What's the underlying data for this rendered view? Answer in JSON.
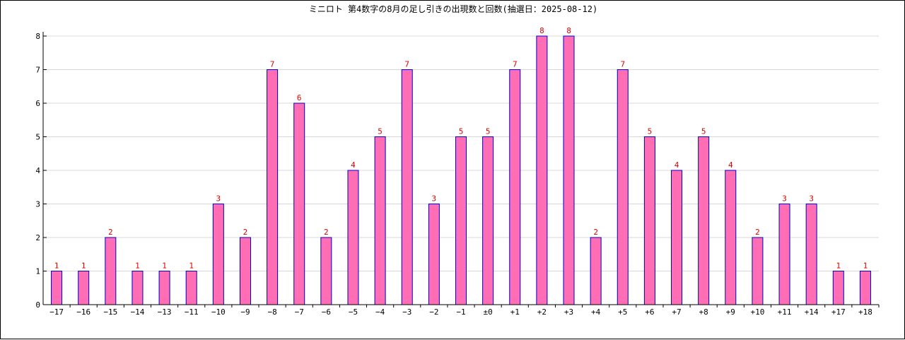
{
  "chart_data": {
    "type": "bar",
    "title": "ミニロト 第4数字の8月の足し引きの出現数と回数(抽選日：2025-08-12)",
    "xlabel": "",
    "ylabel": "",
    "categories": [
      "−17",
      "−16",
      "−15",
      "−14",
      "−13",
      "−11",
      "−10",
      "−9",
      "−8",
      "−7",
      "−6",
      "−5",
      "−4",
      "−3",
      "−2",
      "−1",
      "±0",
      "+1",
      "+2",
      "+3",
      "+4",
      "+5",
      "+6",
      "+7",
      "+8",
      "+9",
      "+10",
      "+11",
      "+14",
      "+17",
      "+18"
    ],
    "values": [
      1,
      1,
      2,
      1,
      1,
      1,
      3,
      2,
      7,
      6,
      2,
      4,
      5,
      7,
      3,
      5,
      5,
      7,
      8,
      8,
      2,
      7,
      5,
      4,
      5,
      4,
      2,
      3,
      3,
      1,
      1
    ],
    "ylim": [
      0,
      8
    ],
    "yticks": [
      0,
      1,
      2,
      3,
      4,
      5,
      6,
      7,
      8
    ],
    "grid": true,
    "legend": "none",
    "colors": {
      "bar_fill": "#ff6eb4",
      "bar_stroke": "#0000cc",
      "value_label": "#dd0000",
      "grid": "#d8d8d8",
      "axis": "#000000"
    }
  }
}
